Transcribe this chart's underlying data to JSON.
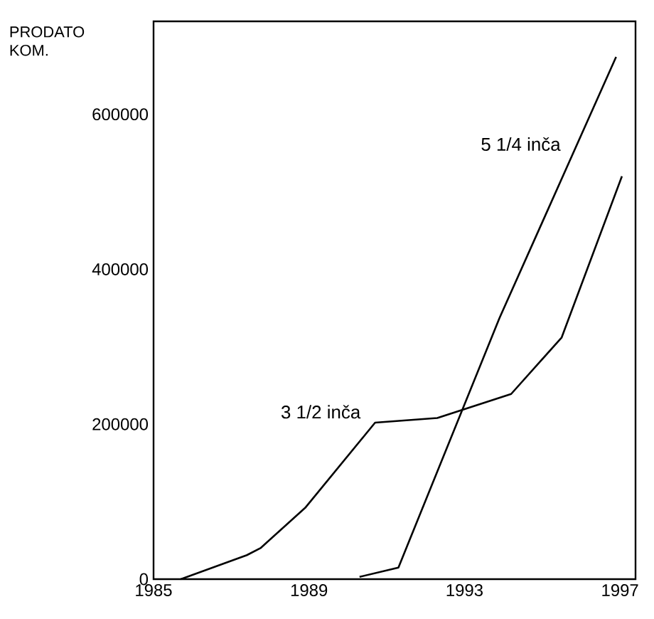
{
  "chart_data": {
    "type": "line",
    "ylabel": "PRODATO KOM.",
    "xlim": [
      1985,
      1997.4
    ],
    "xticks": [
      1985,
      1989,
      1993,
      1997
    ],
    "ylim": [
      0,
      720000
    ],
    "yticks": [
      0,
      200000,
      400000,
      600000
    ],
    "grid": false,
    "legend": false,
    "marker": "none",
    "line_style": "solid",
    "series": [
      {
        "name": "3 1/2 inča",
        "color": "#000000",
        "x": [
          1985.7,
          1987.4,
          1987.75,
          1988.9,
          1990.7,
          1992.3,
          1994.2,
          1995.5,
          1997.05
        ],
        "values": [
          0,
          31000,
          40000,
          92000,
          202000,
          208000,
          239000,
          312000,
          520000
        ]
      },
      {
        "name": "5 1/4 inča",
        "color": "#000000",
        "x": [
          1990.3,
          1991.3,
          1993.9,
          1996.9
        ],
        "values": [
          3000,
          15000,
          337000,
          674000
        ]
      }
    ]
  }
}
